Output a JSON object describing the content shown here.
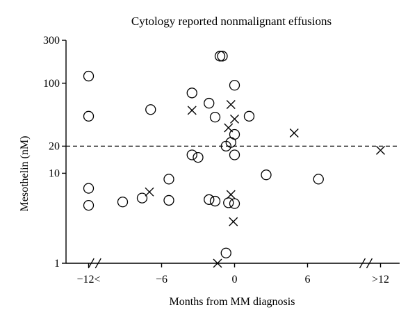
{
  "chart_data": {
    "type": "scatter",
    "title": "Cytology reported nonmalignant effusions",
    "xlabel": "Months from MM diagnosis",
    "ylabel": "Mesothelin (nM)",
    "y_scale": "log",
    "ylim": [
      1,
      300
    ],
    "y_ticks": [
      {
        "value": 1,
        "label": "1"
      },
      {
        "value": 10,
        "label": "10"
      },
      {
        "value": 20,
        "label": "20"
      },
      {
        "value": 100,
        "label": "100"
      },
      {
        "value": 300,
        "label": "300"
      }
    ],
    "x_ticks": [
      {
        "value": -12,
        "label": "−12<"
      },
      {
        "value": -6,
        "label": "−6"
      },
      {
        "value": 0,
        "label": "0"
      },
      {
        "value": 6,
        "label": "6"
      },
      {
        "value": 12,
        "label": ">12"
      }
    ],
    "x_axis_breaks": [
      -11.5,
      10.8
    ],
    "reference_line": {
      "y": 20,
      "style": "dashed"
    },
    "grid": false,
    "series": [
      {
        "marker": "circle",
        "points": [
          {
            "x": -12,
            "y": 120
          },
          {
            "x": -12,
            "y": 43
          },
          {
            "x": -12,
            "y": 6.8
          },
          {
            "x": -12,
            "y": 4.4
          },
          {
            "x": -9.2,
            "y": 4.8
          },
          {
            "x": -7.6,
            "y": 5.3
          },
          {
            "x": -6.9,
            "y": 51
          },
          {
            "x": -5.4,
            "y": 8.6
          },
          {
            "x": -5.4,
            "y": 5.0
          },
          {
            "x": -3.5,
            "y": 78
          },
          {
            "x": -3.5,
            "y": 16
          },
          {
            "x": -3.0,
            "y": 15
          },
          {
            "x": -2.1,
            "y": 60
          },
          {
            "x": -2.1,
            "y": 5.1
          },
          {
            "x": -1.6,
            "y": 42
          },
          {
            "x": -1.6,
            "y": 4.9
          },
          {
            "x": -1.2,
            "y": 200
          },
          {
            "x": -1.0,
            "y": 200
          },
          {
            "x": -0.7,
            "y": 20
          },
          {
            "x": -0.7,
            "y": 1.3
          },
          {
            "x": -0.5,
            "y": 4.7
          },
          {
            "x": -0.3,
            "y": 22
          },
          {
            "x": 0.0,
            "y": 95
          },
          {
            "x": 0.0,
            "y": 27
          },
          {
            "x": 0.0,
            "y": 16
          },
          {
            "x": 0.0,
            "y": 4.6
          },
          {
            "x": 1.2,
            "y": 43
          },
          {
            "x": 2.6,
            "y": 9.6
          },
          {
            "x": 6.9,
            "y": 8.6
          }
        ]
      },
      {
        "marker": "x",
        "points": [
          {
            "x": -7.0,
            "y": 6.2
          },
          {
            "x": -3.5,
            "y": 50
          },
          {
            "x": -0.3,
            "y": 58
          },
          {
            "x": -0.5,
            "y": 32
          },
          {
            "x": 0.0,
            "y": 40
          },
          {
            "x": -0.3,
            "y": 5.8
          },
          {
            "x": -0.1,
            "y": 2.9
          },
          {
            "x": -1.4,
            "y": 1.0
          },
          {
            "x": 4.9,
            "y": 28
          },
          {
            "x": 12,
            "y": 18
          }
        ]
      }
    ]
  }
}
